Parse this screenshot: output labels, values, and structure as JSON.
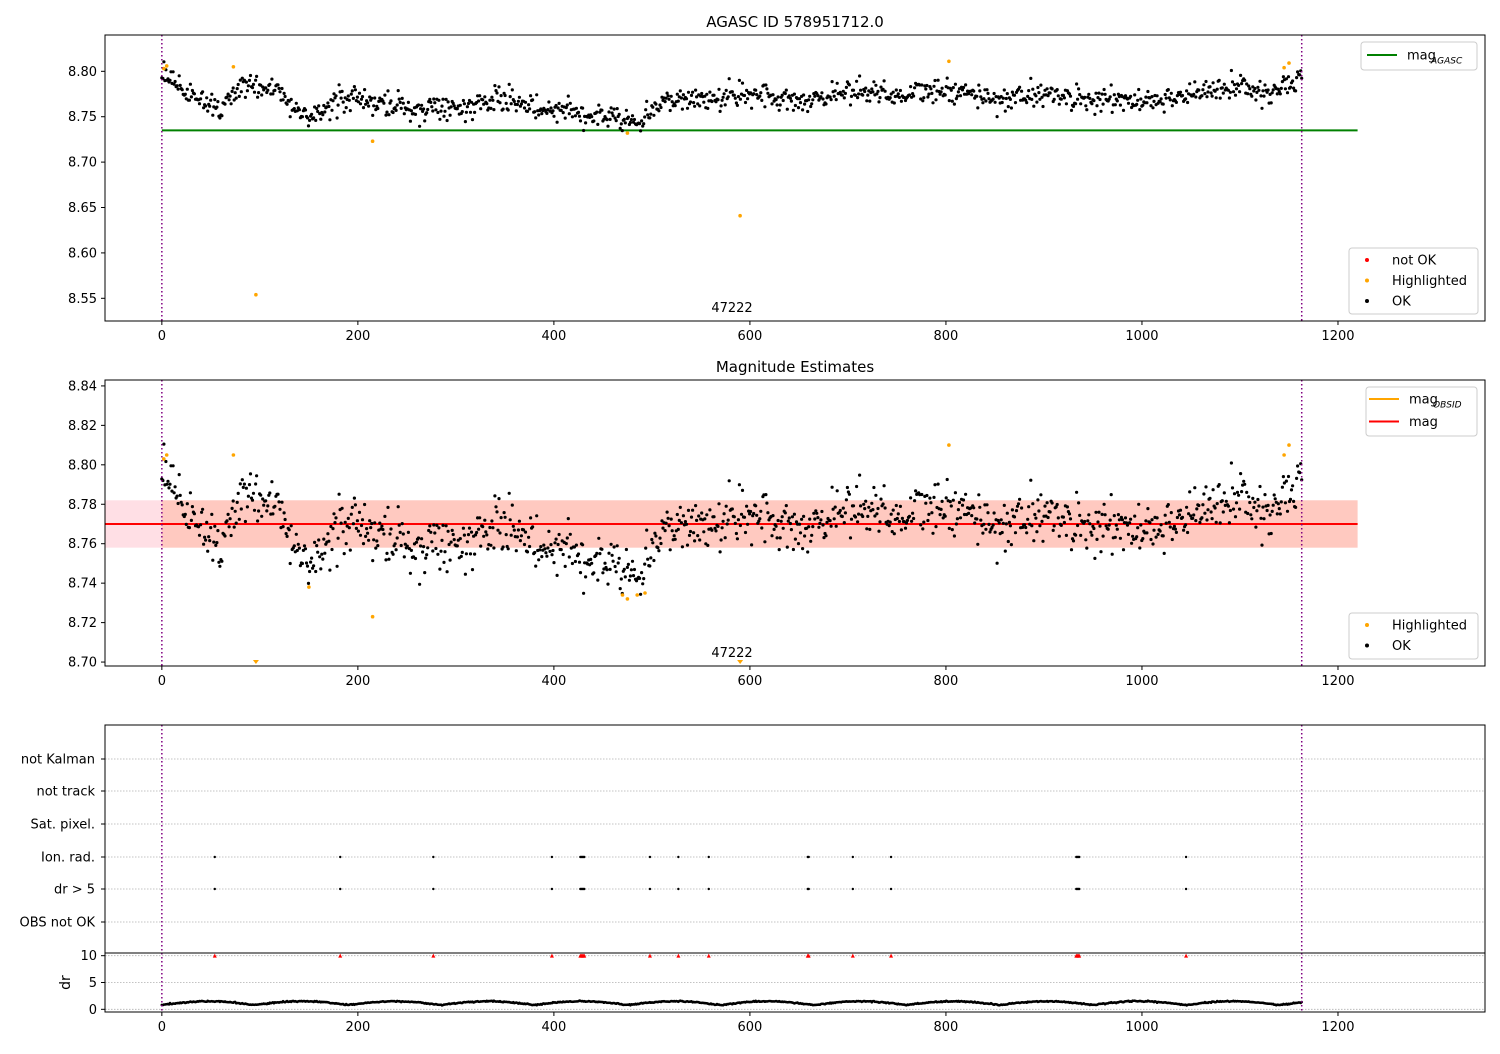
{
  "colors": {
    "ok": "#000000",
    "not_ok": "#ff0000",
    "highlighted": "#ffa500",
    "mag_agasc": "#008000",
    "mag": "#ff0000",
    "mag_obsid": "#ffa500",
    "band_fill": "#ffc0cb",
    "band_overlap": "#ffa07a",
    "obs_boundary": "#800080",
    "grid": "#b0b0b0"
  },
  "chart_data": [
    {
      "type": "scatter",
      "title": "AGASC ID 578951712.0",
      "xlim": [
        -58,
        1350
      ],
      "ylim": [
        8.525,
        8.84
      ],
      "xticks": [
        0,
        200,
        400,
        600,
        800,
        1000,
        1200
      ],
      "xtick_labels": [
        "0",
        "200",
        "400",
        "600",
        "800",
        "1000",
        "1200"
      ],
      "yticks": [
        8.55,
        8.6,
        8.65,
        8.7,
        8.75,
        8.8
      ],
      "ytick_labels": [
        "8.55",
        "8.60",
        "8.65",
        "8.70",
        "8.75",
        "8.80"
      ],
      "obs_boundaries": [
        0,
        1163
      ],
      "obsid_label": "47222",
      "obsid_label_x": 581,
      "mag_agasc": {
        "value": 8.735,
        "x": [
          0,
          1220
        ]
      },
      "series_ok": {
        "trend": [
          [
            0,
            8.797
          ],
          [
            20,
            8.778
          ],
          [
            40,
            8.768
          ],
          [
            60,
            8.76
          ],
          [
            80,
            8.785
          ],
          [
            120,
            8.775
          ],
          [
            150,
            8.745
          ],
          [
            180,
            8.77
          ],
          [
            220,
            8.765
          ],
          [
            260,
            8.758
          ],
          [
            300,
            8.76
          ],
          [
            350,
            8.768
          ],
          [
            400,
            8.758
          ],
          [
            450,
            8.752
          ],
          [
            490,
            8.745
          ],
          [
            510,
            8.768
          ],
          [
            560,
            8.77
          ],
          [
            600,
            8.775
          ],
          [
            650,
            8.765
          ],
          [
            700,
            8.78
          ],
          [
            750,
            8.775
          ],
          [
            800,
            8.778
          ],
          [
            850,
            8.77
          ],
          [
            900,
            8.775
          ],
          [
            950,
            8.768
          ],
          [
            1000,
            8.767
          ],
          [
            1050,
            8.775
          ],
          [
            1100,
            8.783
          ],
          [
            1130,
            8.775
          ],
          [
            1163,
            8.792
          ]
        ],
        "spread": 0.009,
        "n": 1120
      },
      "series_highlighted": {
        "x": [
          2,
          5,
          73,
          96,
          215,
          475,
          590,
          803,
          1145,
          1150
        ],
        "y": [
          8.803,
          8.806,
          8.805,
          8.554,
          8.723,
          8.732,
          8.641,
          8.811,
          8.804,
          8.809
        ]
      },
      "legend_lines": [
        {
          "label": "mag",
          "sub": "AGASC",
          "color_key": "mag_agasc"
        }
      ],
      "legend_markers": [
        {
          "label": "not OK",
          "color_key": "not_ok"
        },
        {
          "label": "Highlighted",
          "color_key": "highlighted"
        },
        {
          "label": "OK",
          "color_key": "ok"
        }
      ]
    },
    {
      "type": "scatter",
      "title": "Magnitude Estimates",
      "xlim": [
        -58,
        1350
      ],
      "ylim": [
        8.698,
        8.843
      ],
      "xticks": [
        0,
        200,
        400,
        600,
        800,
        1000,
        1200
      ],
      "xtick_labels": [
        "0",
        "200",
        "400",
        "600",
        "800",
        "1000",
        "1200"
      ],
      "yticks": [
        8.7,
        8.72,
        8.74,
        8.76,
        8.78,
        8.8,
        8.82,
        8.84
      ],
      "ytick_labels": [
        "8.70",
        "8.72",
        "8.74",
        "8.76",
        "8.78",
        "8.80",
        "8.82",
        "8.84"
      ],
      "obs_boundaries": [
        0,
        1163
      ],
      "obsid_label": "47222",
      "obsid_label_x": 581,
      "mag": {
        "value": 8.77,
        "band": [
          8.758,
          8.782
        ],
        "x": [
          -58,
          1220
        ]
      },
      "mag_obsid": {
        "value": 8.77,
        "band": [
          8.758,
          8.782
        ],
        "x": [
          0,
          1220
        ]
      },
      "series_ok": {
        "trend": [
          [
            0,
            8.797
          ],
          [
            20,
            8.778
          ],
          [
            40,
            8.768
          ],
          [
            60,
            8.76
          ],
          [
            80,
            8.785
          ],
          [
            120,
            8.775
          ],
          [
            150,
            8.745
          ],
          [
            180,
            8.77
          ],
          [
            220,
            8.765
          ],
          [
            260,
            8.758
          ],
          [
            300,
            8.76
          ],
          [
            350,
            8.768
          ],
          [
            400,
            8.758
          ],
          [
            450,
            8.752
          ],
          [
            490,
            8.745
          ],
          [
            510,
            8.768
          ],
          [
            560,
            8.77
          ],
          [
            600,
            8.775
          ],
          [
            650,
            8.765
          ],
          [
            700,
            8.78
          ],
          [
            750,
            8.775
          ],
          [
            800,
            8.778
          ],
          [
            850,
            8.77
          ],
          [
            900,
            8.775
          ],
          [
            950,
            8.768
          ],
          [
            1000,
            8.767
          ],
          [
            1050,
            8.775
          ],
          [
            1100,
            8.783
          ],
          [
            1130,
            8.775
          ],
          [
            1163,
            8.792
          ]
        ],
        "spread": 0.009,
        "n": 1120
      },
      "series_highlighted": {
        "x": [
          2,
          5,
          73,
          150,
          215,
          470,
          475,
          485,
          493,
          803,
          1145,
          1150
        ],
        "y": [
          8.803,
          8.805,
          8.805,
          8.738,
          8.723,
          8.734,
          8.732,
          8.734,
          8.735,
          8.81,
          8.805,
          8.81
        ]
      },
      "series_highlighted_offscale": {
        "x": [
          96,
          590
        ],
        "y": [
          8.7,
          8.7
        ]
      },
      "legend_lines": [
        {
          "label": "mag",
          "sub": "OBSID",
          "color_key": "mag_obsid"
        },
        {
          "label": "mag",
          "sub": "",
          "color_key": "mag"
        }
      ],
      "legend_markers": [
        {
          "label": "Highlighted",
          "color_key": "highlighted"
        },
        {
          "label": "OK",
          "color_key": "ok"
        }
      ]
    },
    {
      "type": "scatter",
      "title": "",
      "xlim": [
        -58,
        1350
      ],
      "flag_rows": [
        "not Kalman",
        "not track",
        "Sat. pixel.",
        "Ion. rad.",
        "dr > 5",
        "OBS not OK"
      ],
      "flag_points": {
        "Ion. rad.": [
          54,
          182,
          277,
          398,
          427,
          428,
          429,
          430,
          431,
          498,
          527,
          558,
          659,
          660,
          705,
          744,
          933,
          934,
          935,
          936,
          1045
        ],
        "dr > 5": [
          54,
          182,
          277,
          398,
          427,
          428,
          429,
          430,
          431,
          498,
          527,
          558,
          659,
          660,
          705,
          744,
          933,
          934,
          935,
          936,
          1045
        ]
      },
      "obs_boundaries": [
        0,
        1163
      ]
    },
    {
      "type": "scatter",
      "title": "",
      "ylabel": "dr",
      "xlim": [
        -58,
        1350
      ],
      "ylim": [
        -0.5,
        10.5
      ],
      "xticks": [
        0,
        200,
        400,
        600,
        800,
        1000,
        1200
      ],
      "xtick_labels": [
        "0",
        "200",
        "400",
        "600",
        "800",
        "1000",
        "1200"
      ],
      "yticks": [
        0,
        5,
        10
      ],
      "ytick_labels": [
        "0",
        "5",
        "10"
      ],
      "dr_clipped_x": [
        54,
        182,
        277,
        398,
        427,
        428,
        429,
        430,
        431,
        498,
        527,
        558,
        659,
        660,
        705,
        744,
        933,
        934,
        935,
        936,
        1045
      ],
      "dr_clipped_y": 10,
      "dr_series": {
        "amplitude": 0.7,
        "baseline": 0.8,
        "period": 95,
        "n": 1120
      },
      "obs_boundaries": [
        0,
        1163
      ]
    }
  ]
}
